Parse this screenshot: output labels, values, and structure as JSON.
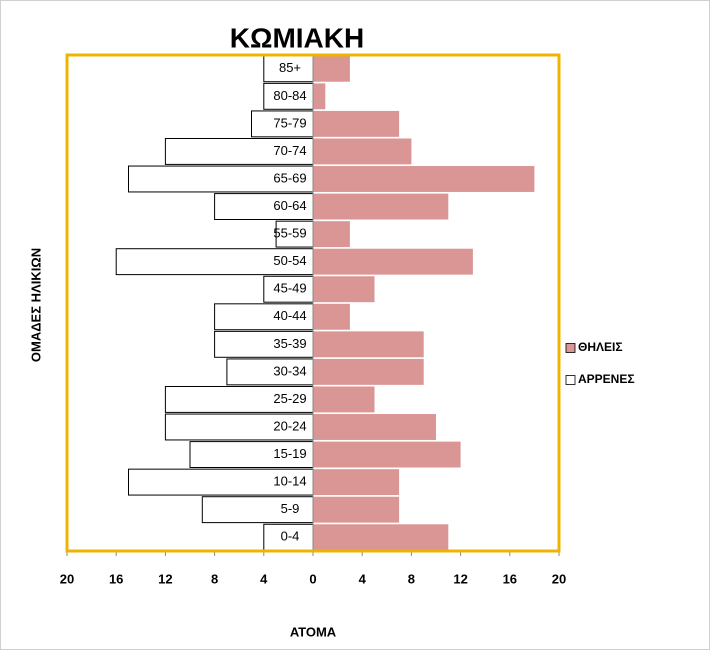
{
  "chart_data": {
    "type": "pyramid",
    "title": "ΚΩΜΙΑΚΗ",
    "y_label": "ΟΜΑΔΕΣ ΗΛΙΚΙΩΝ",
    "x_label": "ΑΤΟΜΑ",
    "categories": [
      "0-4",
      "5-9",
      "10-14",
      "15-19",
      "20-24",
      "25-29",
      "30-34",
      "35-39",
      "40-44",
      "45-49",
      "50-54",
      "55-59",
      "60-64",
      "65-69",
      "70-74",
      "75-79",
      "80-84",
      "85+"
    ],
    "series": [
      {
        "name": "ΘΗΛΕΙΣ",
        "color": "#d99694",
        "values": [
          11,
          7,
          7,
          12,
          10,
          5,
          9,
          9,
          3,
          5,
          13,
          3,
          11,
          18,
          8,
          7,
          1,
          3
        ]
      },
      {
        "name": "ΑΡΡΕΝΕΣ",
        "color": "#ffffff",
        "values": [
          -4,
          -9,
          -15,
          -10,
          -12,
          -12,
          -7,
          -8,
          -8,
          -4,
          -16,
          -3,
          -8,
          -15,
          -12,
          -5,
          -4,
          -4
        ]
      }
    ],
    "xlim": [
      -20,
      20
    ],
    "xticks": [
      {
        "value": -20,
        "label": "20"
      },
      {
        "value": -16,
        "label": "16"
      },
      {
        "value": -12,
        "label": "12"
      },
      {
        "value": -8,
        "label": "8"
      },
      {
        "value": -4,
        "label": "4"
      },
      0,
      4,
      8,
      12,
      16,
      20
    ],
    "legend": "right"
  }
}
